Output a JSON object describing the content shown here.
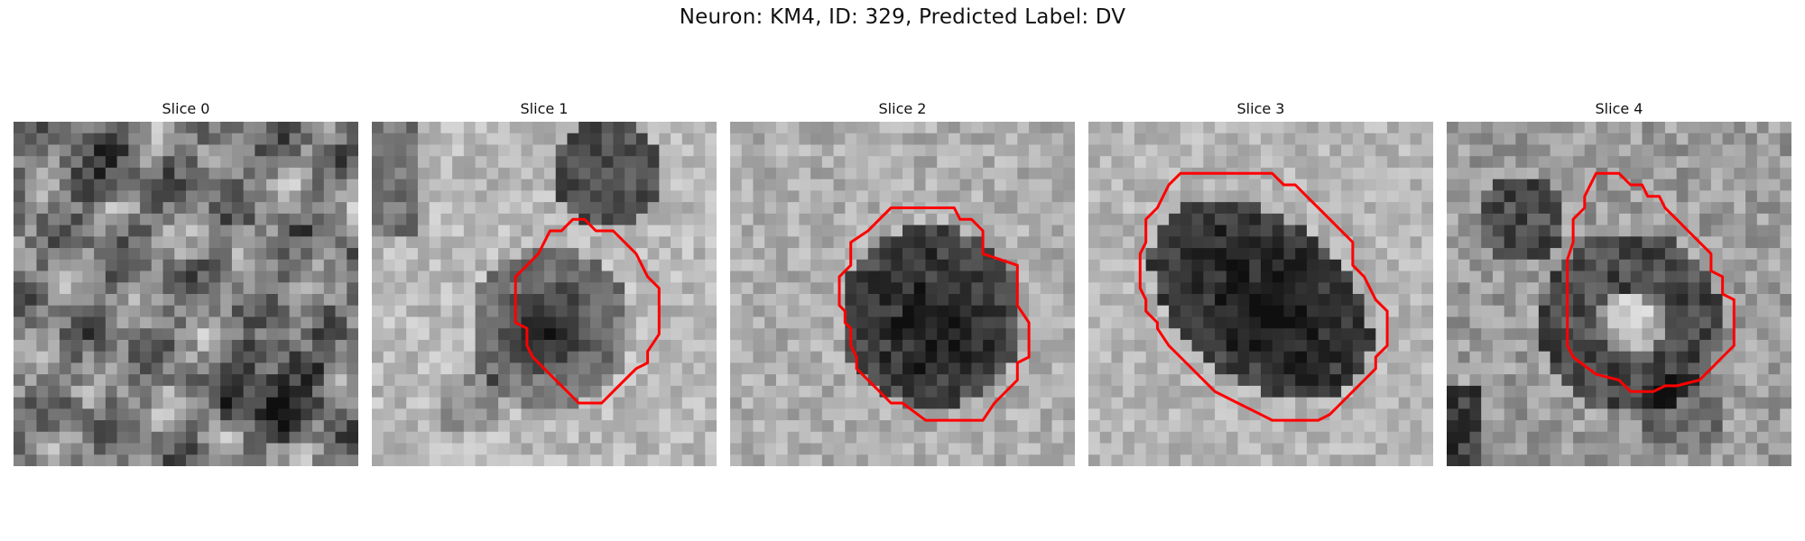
{
  "title": "Neuron: KM4, ID: 329, Predicted Label: DV",
  "panels": [
    {
      "title": "Slice 0",
      "has_contour": false
    },
    {
      "title": "Slice 1",
      "has_contour": true
    },
    {
      "title": "Slice 2",
      "has_contour": true
    },
    {
      "title": "Slice 3",
      "has_contour": true
    },
    {
      "title": "Slice 4",
      "has_contour": true
    }
  ],
  "image": {
    "colormap": "grayscale",
    "grid_size": 30
  },
  "colors": {
    "background": "#ffffff",
    "contour": "#ff0000"
  }
}
